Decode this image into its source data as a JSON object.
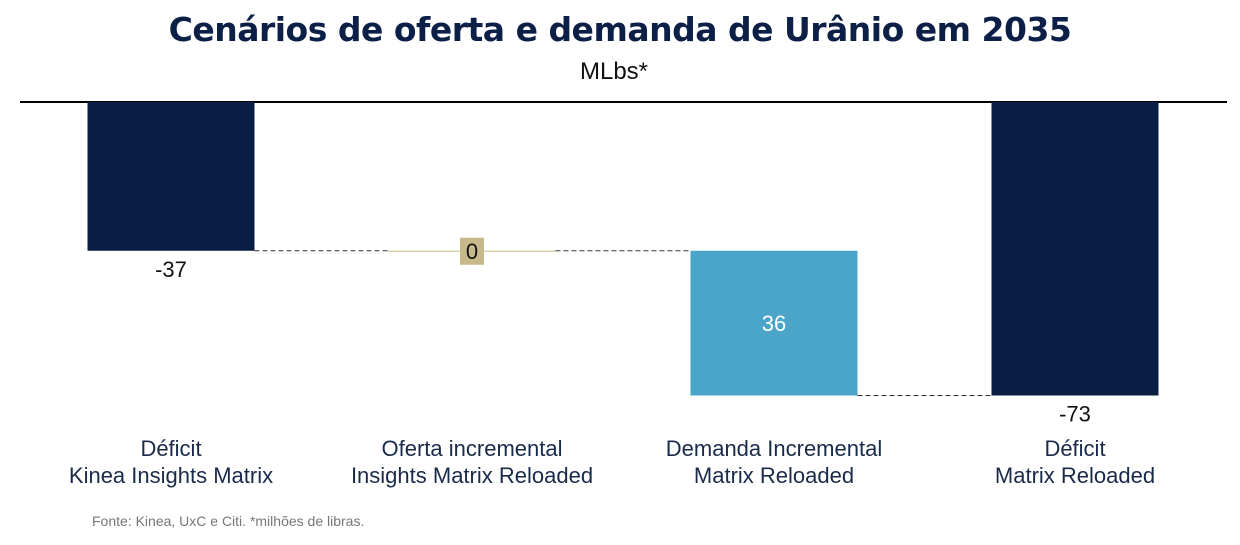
{
  "chart_data": {
    "type": "waterfall",
    "title": "Cenários de oferta e demanda de Urânio em 2035",
    "subtitle": "MLbs*",
    "categories": [
      [
        "Déficit",
        "Kinea Insights Matrix"
      ],
      [
        "Oferta incremental",
        "Insights Matrix Reloaded"
      ],
      [
        "Demanda Incremental",
        "Matrix Reloaded"
      ],
      [
        "Déficit",
        "Matrix Reloaded"
      ]
    ],
    "values": [
      -37,
      0,
      36,
      -73
    ],
    "value_labels": [
      "-37",
      "0",
      "36",
      "-73"
    ],
    "kinds": [
      "total",
      "delta",
      "delta",
      "total"
    ],
    "colors": [
      "#0a1d45",
      "#c7b98b",
      "#4ba5c9",
      "#0a1d45"
    ],
    "ylim": [
      -80,
      0
    ]
  },
  "source": "Fonte: Kinea, UxC e Citi. *milhões de libras."
}
